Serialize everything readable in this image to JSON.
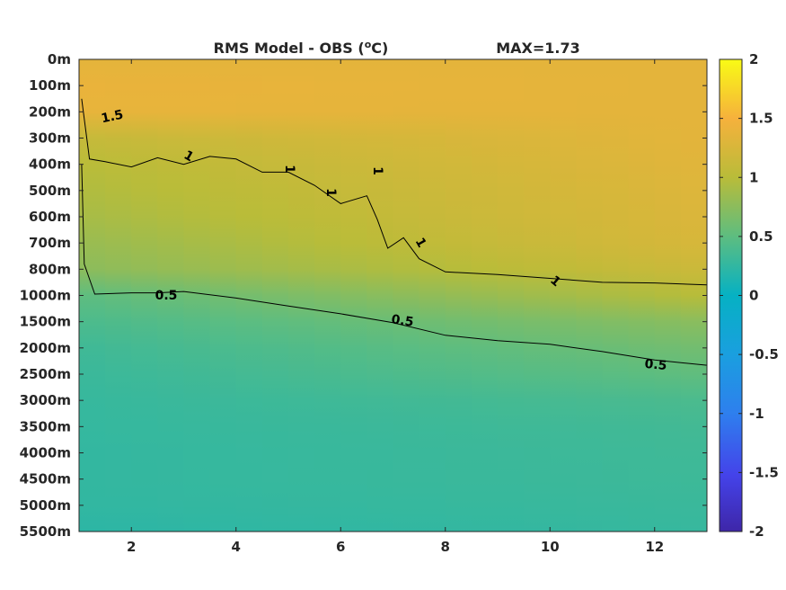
{
  "title": "RMS Model - OBS (°C)",
  "title_parts": {
    "prefix": "RMS Model - OBS (",
    "sup": "o",
    "suffix": "C)"
  },
  "max_label": "MAX=1.73",
  "chart_data": {
    "type": "heatmap",
    "title": "RMS Model - OBS (°C)",
    "annotation": "MAX=1.73",
    "max": 1.73,
    "xlim": [
      1,
      13
    ],
    "x_ticks": [
      2,
      4,
      6,
      8,
      10,
      12
    ],
    "y_tick_labels": [
      "0m",
      "100m",
      "200m",
      "300m",
      "400m",
      "500m",
      "600m",
      "700m",
      "800m",
      "1000m",
      "1500m",
      "2000m",
      "2500m",
      "3000m",
      "3500m",
      "4000m",
      "4500m",
      "5000m",
      "5500m"
    ],
    "depths_m": [
      0,
      100,
      200,
      300,
      400,
      500,
      600,
      700,
      800,
      1000,
      1500,
      2000,
      2500,
      3000,
      3500,
      4000,
      4500,
      5000,
      5500
    ],
    "colorbar": {
      "range": [
        -2,
        2
      ],
      "ticks": [
        2,
        1.5,
        1,
        0.5,
        0,
        -0.5,
        -1,
        -1.5,
        -2
      ],
      "tick_labels": [
        "2",
        "1.5",
        "1",
        "0.5",
        "0",
        "-0.5",
        "-1",
        "-1.5",
        "-2"
      ],
      "colormap": "parula"
    },
    "contour_levels": [
      0.5,
      1,
      1.5
    ],
    "contour_labels": [
      "1.5",
      "1",
      "1",
      "1",
      "1",
      "1",
      "1",
      "0.5",
      "0.5",
      "0.5"
    ],
    "contours": [
      {
        "level": 1,
        "points": [
          [
            1.05,
            150
          ],
          [
            1.2,
            380
          ],
          [
            1.5,
            390
          ],
          [
            2,
            410
          ],
          [
            2.5,
            375
          ],
          [
            3,
            400
          ],
          [
            3.5,
            370
          ],
          [
            4,
            380
          ],
          [
            4.5,
            430
          ],
          [
            5,
            430
          ],
          [
            5.5,
            480
          ],
          [
            6,
            550
          ],
          [
            6.5,
            520
          ],
          [
            6.7,
            610
          ],
          [
            6.9,
            720
          ],
          [
            7.2,
            680
          ],
          [
            7.5,
            760
          ],
          [
            8,
            820
          ],
          [
            9,
            840
          ],
          [
            10,
            870
          ],
          [
            11,
            900
          ],
          [
            12,
            905
          ],
          [
            13,
            920
          ]
        ]
      },
      {
        "level": 0.5,
        "points": [
          [
            1.05,
            400
          ],
          [
            1.1,
            780
          ],
          [
            1.3,
            990
          ],
          [
            2,
            980
          ],
          [
            2.5,
            980
          ],
          [
            3,
            970
          ],
          [
            4,
            1050
          ],
          [
            5,
            1200
          ],
          [
            6,
            1350
          ],
          [
            7,
            1520
          ],
          [
            8,
            1760
          ],
          [
            9,
            1860
          ],
          [
            10,
            1930
          ],
          [
            11,
            2070
          ],
          [
            12,
            2230
          ],
          [
            13,
            2330
          ]
        ]
      }
    ],
    "field_profile": {
      "depth_index": [
        0,
        1,
        2,
        3,
        4,
        5,
        6,
        7,
        8,
        9,
        10,
        11,
        12,
        13,
        14,
        15,
        16,
        17,
        18
      ],
      "rms_near_x1": [
        1.35,
        1.4,
        1.38,
        1.1,
        1.0,
        0.95,
        0.9,
        0.82,
        0.75,
        0.5,
        0.4,
        0.33,
        0.3,
        0.28,
        0.27,
        0.26,
        0.26,
        0.25,
        0.22
      ],
      "rms_near_x13": [
        1.35,
        1.35,
        1.35,
        1.35,
        1.33,
        1.3,
        1.28,
        1.25,
        1.15,
        1.0,
        0.75,
        0.62,
        0.52,
        0.4,
        0.35,
        0.33,
        0.32,
        0.3,
        0.28
      ]
    }
  }
}
